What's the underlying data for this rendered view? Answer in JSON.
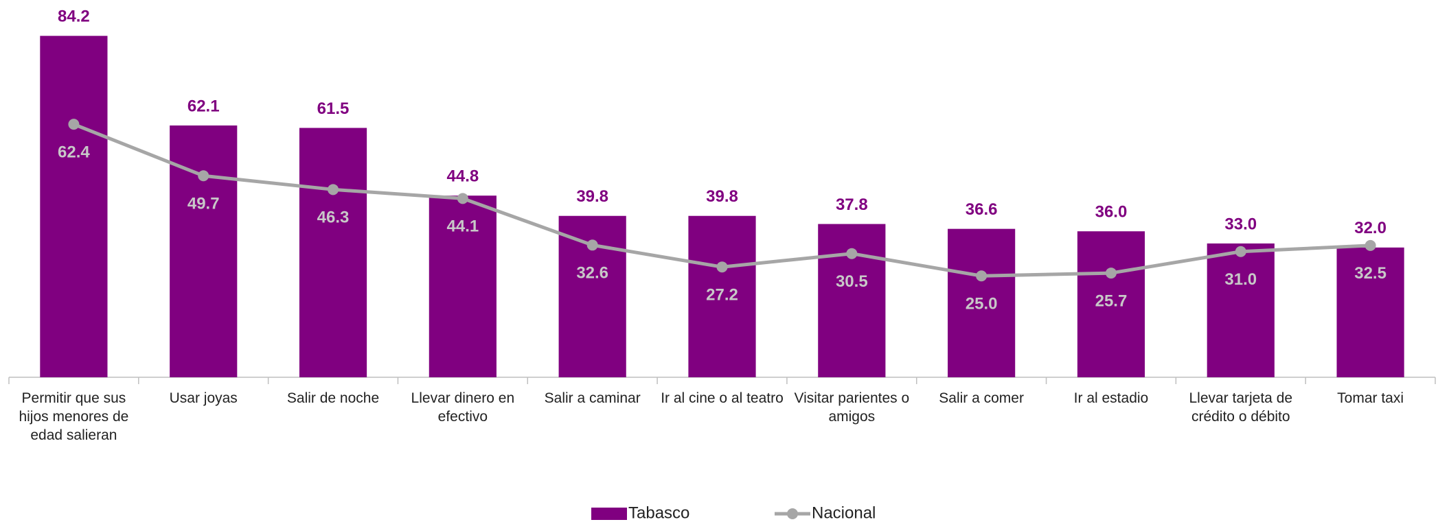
{
  "chart_data": {
    "type": "bar",
    "categories": [
      "Permitir que sus hijos menores de edad salieran",
      "Usar joyas",
      "Salir de noche",
      "Llevar dinero en efectivo",
      "Salir a caminar",
      "Ir al cine o al teatro",
      "Visitar parientes o amigos",
      "Salir a comer",
      "Ir al estadio",
      "Llevar tarjeta de crédito o débito",
      "Tomar taxi"
    ],
    "series": [
      {
        "name": "Tabasco",
        "type": "bar",
        "color": "#800080",
        "values": [
          84.2,
          62.1,
          61.5,
          44.8,
          39.8,
          39.8,
          37.8,
          36.6,
          36.0,
          33.0,
          32.0
        ],
        "value_labels": [
          "84.2",
          "62.1",
          "61.5",
          "44.8",
          "39.8",
          "39.8",
          "37.8",
          "36.6",
          "36.0",
          "33.0",
          "32.0"
        ]
      },
      {
        "name": "Nacional",
        "type": "line",
        "color": "#a6a6a6",
        "values": [
          62.4,
          49.7,
          46.3,
          44.1,
          32.6,
          27.2,
          30.5,
          25.0,
          25.7,
          31.0,
          32.5
        ],
        "value_labels": [
          "62.4",
          "49.7",
          "46.3",
          "44.1",
          "32.6",
          "27.2",
          "30.5",
          "25.0",
          "25.7",
          "31.0",
          "32.5"
        ]
      }
    ],
    "ylim": [
      0,
      90
    ],
    "legend": "bottom"
  }
}
